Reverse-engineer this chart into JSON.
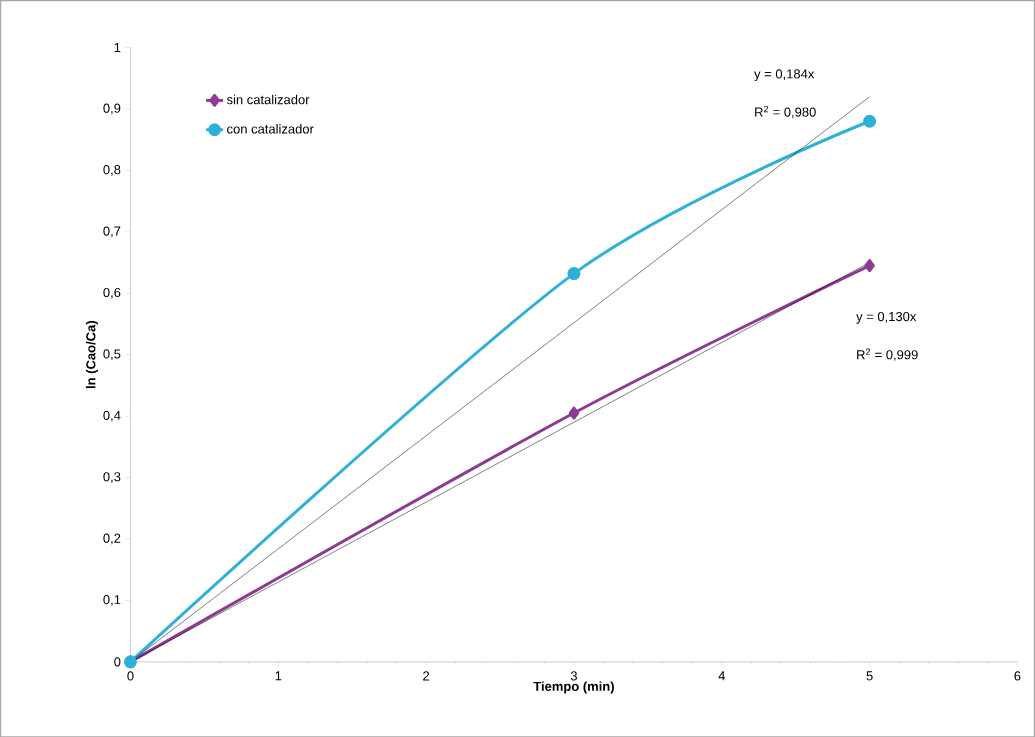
{
  "chart_data": {
    "type": "line",
    "xlabel": "Tiempo (min)",
    "ylabel": "ln (Cao/Ca)",
    "xlim": [
      0,
      6
    ],
    "xticks": [
      0,
      1,
      2,
      3,
      4,
      5,
      6
    ],
    "ylim": [
      0,
      1
    ],
    "yticks": [
      0,
      {
        "value": 0.1,
        "label": "0,1"
      },
      {
        "value": 0.2,
        "label": "0,2"
      },
      {
        "value": 0.3,
        "label": "0,3"
      },
      {
        "value": 0.4,
        "label": "0,4"
      },
      {
        "value": 0.5,
        "label": "0,5"
      },
      {
        "value": 0.6,
        "label": "0,6"
      },
      {
        "value": 0.7,
        "label": "0,7"
      },
      {
        "value": 0.8,
        "label": "0,8"
      },
      {
        "value": 0.9,
        "label": "0,9"
      },
      1
    ],
    "series": [
      {
        "name": "sin catalizador",
        "color": "#8e3a92",
        "marker": "diamond",
        "x": [
          0,
          3,
          5
        ],
        "values": [
          0,
          0.405,
          0.645
        ]
      },
      {
        "name": "con catalizador",
        "color": "#2eb0d8",
        "marker": "circle",
        "x": [
          0,
          3,
          5
        ],
        "values": [
          0,
          0.632,
          0.88
        ]
      },
      {
        "type": "line",
        "color": "#000000",
        "marker": "none",
        "x": [
          0,
          5
        ],
        "values": [
          0,
          0.92
        ]
      },
      {
        "type": "line",
        "color": "#000000",
        "marker": "none",
        "x": [
          0,
          5
        ],
        "values": [
          0,
          0.65
        ]
      }
    ],
    "annotations": [
      "y = 0,184x",
      "R$^{2}$ = 0,980",
      "y = 0,130x",
      "R$^{2}$ = 0,999"
    ],
    "legend": "top left",
    "grid": false
  }
}
